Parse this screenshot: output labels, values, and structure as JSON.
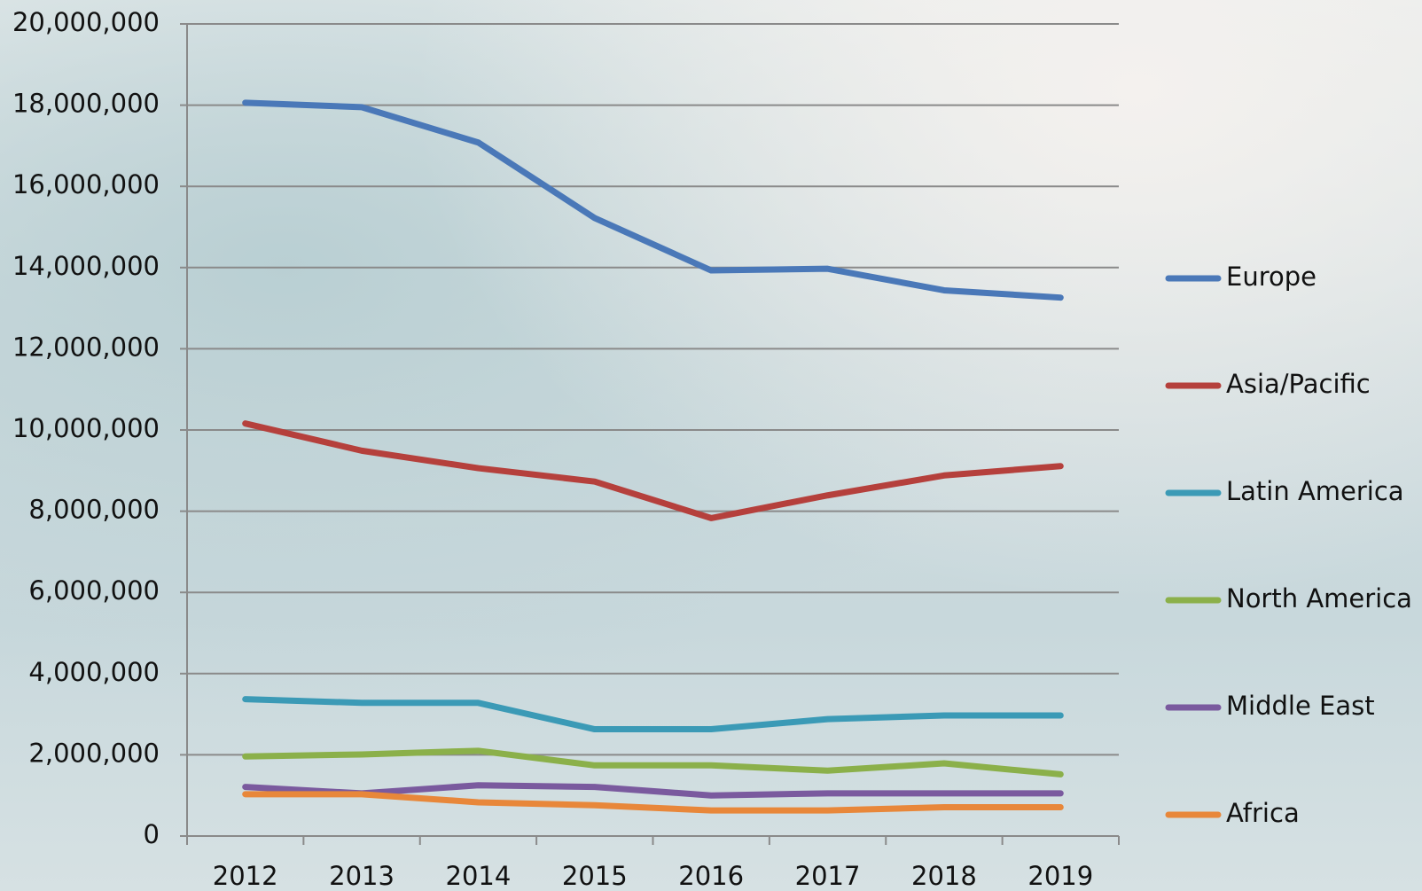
{
  "chart_data": {
    "type": "line",
    "categories": [
      "2012",
      "2013",
      "2014",
      "2015",
      "2016",
      "2017",
      "2018",
      "2019"
    ],
    "series": [
      {
        "name": "Europe",
        "color": "#4a78b8",
        "values": [
          18060000,
          17950000,
          17080000,
          15220000,
          13930000,
          13970000,
          13440000,
          13260000
        ]
      },
      {
        "name": "Asia/Pacific",
        "color": "#b5403c",
        "values": [
          10160000,
          9490000,
          9060000,
          8730000,
          7830000,
          8390000,
          8880000,
          9110000
        ]
      },
      {
        "name": "Latin America",
        "color": "#3b9ab6",
        "values": [
          3370000,
          3280000,
          3280000,
          2630000,
          2630000,
          2880000,
          2970000,
          2970000
        ]
      },
      {
        "name": "North America",
        "color": "#8bb04a",
        "values": [
          1960000,
          2010000,
          2100000,
          1740000,
          1740000,
          1610000,
          1790000,
          1520000
        ]
      },
      {
        "name": "Middle East",
        "color": "#7a5a9e",
        "values": [
          1210000,
          1050000,
          1250000,
          1210000,
          1000000,
          1050000,
          1050000,
          1050000
        ]
      },
      {
        "name": "Africa",
        "color": "#e8873a",
        "values": [
          1030000,
          1030000,
          830000,
          760000,
          630000,
          630000,
          710000,
          710000
        ]
      }
    ],
    "ylim": [
      0,
      20000000
    ],
    "yticks": [
      0,
      {
        "value": 2000000,
        "label": "2,000,000"
      },
      {
        "value": 4000000,
        "label": "4,000,000"
      },
      {
        "value": 6000000,
        "label": "6,000,000"
      },
      {
        "value": 8000000,
        "label": "8,000,000"
      },
      {
        "value": 10000000,
        "label": "10,000,000"
      },
      {
        "value": 12000000,
        "label": "12,000,000"
      },
      {
        "value": 14000000,
        "label": "14,000,000"
      },
      {
        "value": 16000000,
        "label": "16,000,000"
      },
      {
        "value": 18000000,
        "label": "18,000,000"
      },
      {
        "value": 20000000,
        "label": "20,000,000"
      }
    ],
    "grid": true,
    "legend": "right"
  }
}
